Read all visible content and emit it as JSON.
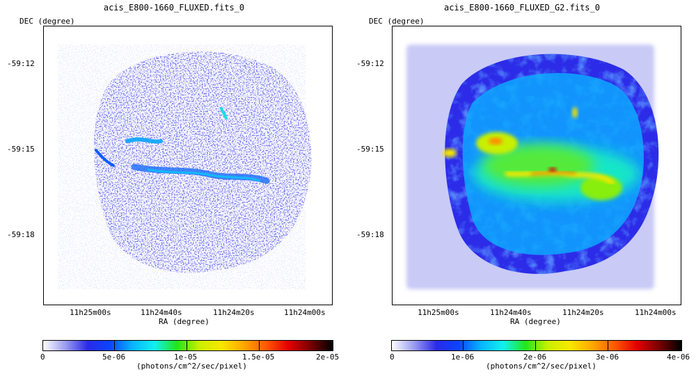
{
  "colors": {
    "colormap": [
      "#ffffff",
      "#9a9cf0",
      "#2a2ae8",
      "#0b44ff",
      "#08b4ff",
      "#12f0f0",
      "#22e61a",
      "#c8f000",
      "#f8e800",
      "#ffa800",
      "#ff5a00",
      "#e40000",
      "#7a0000",
      "#000000"
    ]
  },
  "panels": [
    {
      "title": "acis_E800-1660_FLUXED.fits_0",
      "dec_label": "DEC (degree)",
      "ra_label": "RA (degree)",
      "dec_ticks": [
        "-59:12",
        "-59:15",
        "-59:18"
      ],
      "ra_ticks": [
        "11h25m00s",
        "11h24m40s",
        "11h24m20s",
        "11h24m00s"
      ],
      "colorbar": {
        "min": 0,
        "max": 2e-05,
        "ticks": [
          "0",
          "5e-06",
          "1e-05",
          "1.5e-05",
          "2e-05"
        ],
        "label": "(photons/cm^2/sec/pixel)"
      },
      "image_style": "raw"
    },
    {
      "title": "acis_E800-1660_FLUXED_G2.fits_0",
      "dec_label": "DEC (degree)",
      "ra_label": "RA (degree)",
      "dec_ticks": [
        "-59:12",
        "-59:15",
        "-59:18"
      ],
      "ra_ticks": [
        "11h25m00s",
        "11h24m40s",
        "11h24m20s",
        "11h24m00s"
      ],
      "colorbar": {
        "min": 0,
        "max": 4e-06,
        "ticks": [
          "0",
          "1e-06",
          "2e-06",
          "3e-06",
          "4e-06"
        ],
        "label": "(photons/cm^2/sec/pixel)"
      },
      "image_style": "smoothed"
    }
  ]
}
